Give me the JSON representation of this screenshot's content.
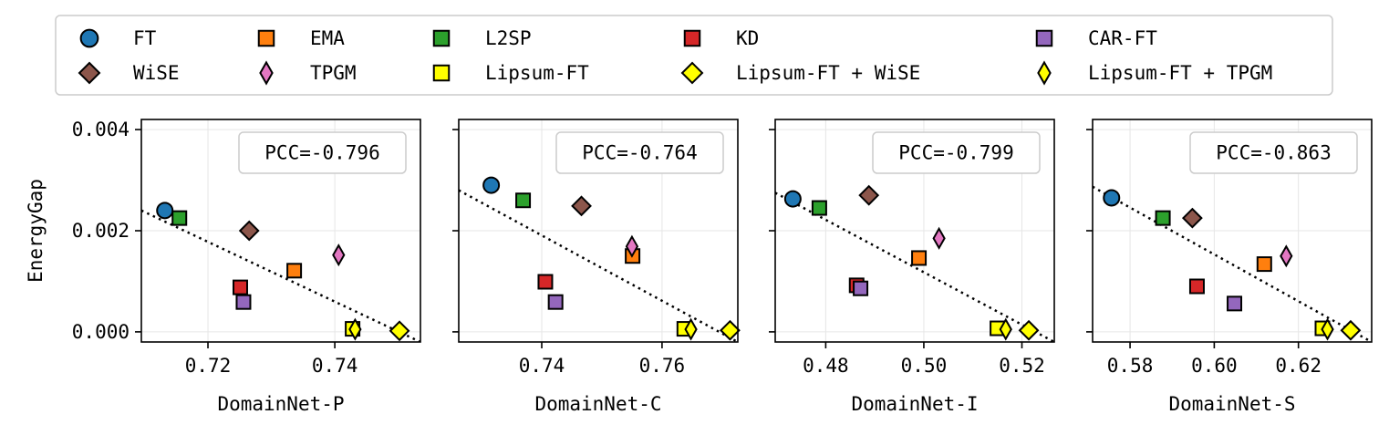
{
  "figure": {
    "ylabel": "EnergyGap"
  },
  "legend": {
    "placement": "top",
    "entries": [
      {
        "label": "FT",
        "marker": "circle",
        "color": "#1f77b4"
      },
      {
        "label": "EMA",
        "marker": "square",
        "color": "#ff7f0e"
      },
      {
        "label": "L2SP",
        "marker": "square",
        "color": "#2ca02c"
      },
      {
        "label": "KD",
        "marker": "square",
        "color": "#d62728"
      },
      {
        "label": "CAR-FT",
        "marker": "square",
        "color": "#9467bd"
      },
      {
        "label": "WiSE",
        "marker": "diamond",
        "color": "#8c564b"
      },
      {
        "label": "TPGM",
        "marker": "thin-diamond",
        "color": "#e377c2"
      },
      {
        "label": "Lipsum-FT",
        "marker": "square",
        "color": "#ffff00"
      },
      {
        "label": "Lipsum-FT + WiSE",
        "marker": "diamond",
        "color": "#ffff00"
      },
      {
        "label": "Lipsum-FT + TPGM",
        "marker": "thin-diamond",
        "color": "#ffff00"
      }
    ]
  },
  "chart_data": [
    {
      "type": "scatter",
      "xlabel": "DomainNet-P",
      "ylabel": "EnergyGap",
      "xlim": [
        0.7095,
        0.7535
      ],
      "ylim": [
        -0.0002,
        0.0042
      ],
      "xticks": [
        "0.72",
        "0.74"
      ],
      "xtick_values": [
        0.72,
        0.74
      ],
      "yticks": [
        "0.000",
        "0.002",
        "0.004"
      ],
      "ytick_values": [
        0.0,
        0.002,
        0.004
      ],
      "grid": true,
      "annotation": "PCC=-0.796",
      "trendline": {
        "style": "dotted",
        "from": [
          0.7095,
          0.0024
        ],
        "to": [
          0.7535,
          -0.0002
        ]
      },
      "points": [
        {
          "series": "FT",
          "x": 0.7132,
          "y": 0.0024
        },
        {
          "series": "L2SP",
          "x": 0.7155,
          "y": 0.00225
        },
        {
          "series": "WiSE",
          "x": 0.7265,
          "y": 0.002
        },
        {
          "series": "EMA",
          "x": 0.7336,
          "y": 0.00121
        },
        {
          "series": "TPGM",
          "x": 0.7406,
          "y": 0.00152
        },
        {
          "series": "KD",
          "x": 0.7251,
          "y": 0.00088
        },
        {
          "series": "CAR-FT",
          "x": 0.7256,
          "y": 0.00059
        },
        {
          "series": "Lipsum-FT",
          "x": 0.7428,
          "y": 6e-05
        },
        {
          "series": "Lipsum-FT + TPGM",
          "x": 0.7432,
          "y": 5e-05
        },
        {
          "series": "Lipsum-FT + WiSE",
          "x": 0.7502,
          "y": 2e-05
        }
      ]
    },
    {
      "type": "scatter",
      "xlabel": "DomainNet-C",
      "ylabel": "",
      "xlim": [
        0.7262,
        0.7726
      ],
      "ylim": [
        -0.0002,
        0.0042
      ],
      "xticks": [
        "0.74",
        "0.76"
      ],
      "xtick_values": [
        0.74,
        0.76
      ],
      "yticks": [
        "",
        "",
        ""
      ],
      "ytick_values": [
        0.0,
        0.002,
        0.004
      ],
      "grid": true,
      "annotation": "PCC=-0.764",
      "trendline": {
        "style": "dotted",
        "from": [
          0.7262,
          0.0028
        ],
        "to": [
          0.7726,
          -0.0002
        ]
      },
      "points": [
        {
          "series": "FT",
          "x": 0.7316,
          "y": 0.0029
        },
        {
          "series": "L2SP",
          "x": 0.7369,
          "y": 0.0026
        },
        {
          "series": "WiSE",
          "x": 0.7466,
          "y": 0.00249
        },
        {
          "series": "EMA",
          "x": 0.7551,
          "y": 0.0015
        },
        {
          "series": "TPGM",
          "x": 0.755,
          "y": 0.00169
        },
        {
          "series": "KD",
          "x": 0.7406,
          "y": 0.00099
        },
        {
          "series": "CAR-FT",
          "x": 0.7423,
          "y": 0.00059
        },
        {
          "series": "Lipsum-FT",
          "x": 0.7637,
          "y": 6e-05
        },
        {
          "series": "Lipsum-FT + TPGM",
          "x": 0.7648,
          "y": 5e-05
        },
        {
          "series": "Lipsum-FT + WiSE",
          "x": 0.7713,
          "y": 3e-05
        }
      ]
    },
    {
      "type": "scatter",
      "xlabel": "DomainNet-I",
      "ylabel": "",
      "xlim": [
        0.4697,
        0.5266
      ],
      "ylim": [
        -0.0002,
        0.0042
      ],
      "xticks": [
        "0.48",
        "0.50",
        "0.52"
      ],
      "xtick_values": [
        0.48,
        0.5,
        0.52
      ],
      "yticks": [
        "",
        "",
        ""
      ],
      "ytick_values": [
        0.0,
        0.002,
        0.004
      ],
      "grid": true,
      "annotation": "PCC=-0.799",
      "trendline": {
        "style": "dotted",
        "from": [
          0.4697,
          0.00275
        ],
        "to": [
          0.5266,
          -0.0002
        ]
      },
      "points": [
        {
          "series": "FT",
          "x": 0.4733,
          "y": 0.00263
        },
        {
          "series": "L2SP",
          "x": 0.4787,
          "y": 0.00245
        },
        {
          "series": "WiSE",
          "x": 0.4888,
          "y": 0.0027
        },
        {
          "series": "TPGM",
          "x": 0.5031,
          "y": 0.00185
        },
        {
          "series": "EMA",
          "x": 0.499,
          "y": 0.00146
        },
        {
          "series": "KD",
          "x": 0.4863,
          "y": 0.00092
        },
        {
          "series": "CAR-FT",
          "x": 0.4871,
          "y": 0.00086
        },
        {
          "series": "Lipsum-FT",
          "x": 0.515,
          "y": 7e-05
        },
        {
          "series": "Lipsum-FT + TPGM",
          "x": 0.5167,
          "y": 5e-05
        },
        {
          "series": "Lipsum-FT + WiSE",
          "x": 0.5214,
          "y": 3e-05
        }
      ]
    },
    {
      "type": "scatter",
      "xlabel": "DomainNet-S",
      "ylabel": "",
      "xlim": [
        0.5711,
        0.6374
      ],
      "ylim": [
        -0.0002,
        0.0042
      ],
      "xticks": [
        "0.58",
        "0.60",
        "0.62"
      ],
      "xtick_values": [
        0.58,
        0.6,
        0.62
      ],
      "yticks": [
        "",
        "",
        ""
      ],
      "ytick_values": [
        0.0,
        0.002,
        0.004
      ],
      "grid": true,
      "annotation": "PCC=-0.863",
      "trendline": {
        "style": "dotted",
        "from": [
          0.5711,
          0.00287
        ],
        "to": [
          0.6374,
          -0.0002
        ]
      },
      "points": [
        {
          "series": "FT",
          "x": 0.5756,
          "y": 0.00265
        },
        {
          "series": "L2SP",
          "x": 0.5878,
          "y": 0.00225
        },
        {
          "series": "WiSE",
          "x": 0.5948,
          "y": 0.00225
        },
        {
          "series": "TPGM",
          "x": 0.6171,
          "y": 0.0015
        },
        {
          "series": "EMA",
          "x": 0.6119,
          "y": 0.00134
        },
        {
          "series": "KD",
          "x": 0.5959,
          "y": 0.0009
        },
        {
          "series": "CAR-FT",
          "x": 0.6048,
          "y": 0.00056
        },
        {
          "series": "Lipsum-FT",
          "x": 0.6257,
          "y": 7e-05
        },
        {
          "series": "Lipsum-FT + TPGM",
          "x": 0.6269,
          "y": 5e-05
        },
        {
          "series": "Lipsum-FT + WiSE",
          "x": 0.6324,
          "y": 3e-05
        }
      ]
    }
  ]
}
